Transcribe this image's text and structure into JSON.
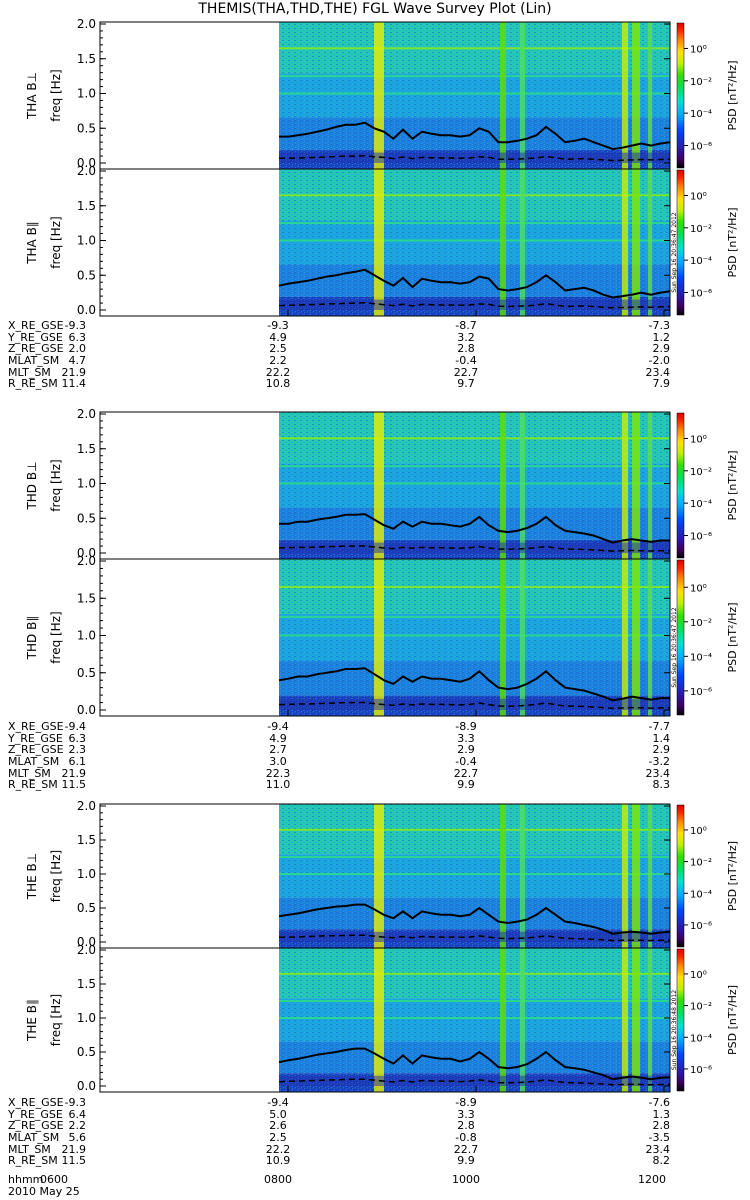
{
  "title": "THEMIS(THA,THD,THE) FGL Wave Survey Plot (Lin)",
  "colorbar_label": "PSD [nT²/Hz]",
  "colorbar_ticks": [
    "10⁰",
    "10⁻²",
    "10⁻⁴",
    "10⁻⁶"
  ],
  "stamps": [
    "Sun Sep 16 20:36:47 2012",
    "Sun Sep 16 20:36:47 2012",
    "Sun Sep 16 20:36:48 2012"
  ],
  "time_axis": {
    "labels": [
      "hhmm",
      "2010 May 25"
    ],
    "ticks": [
      "0600",
      "0800",
      "1000",
      "1200"
    ]
  },
  "ephemeris_labels": [
    "X_RE_GSE",
    "Y_RE_GSE",
    "Z_RE_GSE",
    "MLAT_SM",
    "MLT_SM",
    "R_RE_SM"
  ],
  "ephemeris": [
    {
      "rows": [
        [
          "-9.3",
          "-9.3",
          "-8.7",
          "-7.3"
        ],
        [
          "6.3",
          "4.9",
          "3.2",
          "1.2"
        ],
        [
          "2.0",
          "2.5",
          "2.8",
          "2.9"
        ],
        [
          "4.7",
          "2.2",
          "-0.4",
          "-2.0"
        ],
        [
          "21.9",
          "22.2",
          "22.7",
          "23.4"
        ],
        [
          "11.4",
          "10.8",
          "9.7",
          "7.9"
        ]
      ]
    },
    {
      "rows": [
        [
          "-9.4",
          "-9.4",
          "-8.9",
          "-7.7"
        ],
        [
          "6.3",
          "4.9",
          "3.3",
          "1.4"
        ],
        [
          "2.3",
          "2.7",
          "2.9",
          "2.9"
        ],
        [
          "6.1",
          "3.0",
          "-0.4",
          "-3.2"
        ],
        [
          "21.9",
          "22.3",
          "22.7",
          "23.4"
        ],
        [
          "11.5",
          "11.0",
          "9.9",
          "8.3"
        ]
      ]
    },
    {
      "rows": [
        [
          "-9.3",
          "-9.4",
          "-8.9",
          "-7.6"
        ],
        [
          "6.4",
          "5.0",
          "3.3",
          "1.3"
        ],
        [
          "2.2",
          "2.6",
          "2.8",
          "2.8"
        ],
        [
          "5.6",
          "2.5",
          "-0.8",
          "-3.5"
        ],
        [
          "21.9",
          "22.2",
          "22.7",
          "23.4"
        ],
        [
          "11.5",
          "10.9",
          "9.9",
          "8.2"
        ]
      ]
    }
  ],
  "chart_data": [
    {
      "type": "heatmap",
      "ylabel": "THA B⊥",
      "yunit": "freq [Hz]",
      "ylim": [
        0,
        2.0
      ],
      "yticks": [
        "0.0",
        "0.5",
        "1.0",
        "1.5",
        "2.0"
      ],
      "data_start_hhmm": "0800",
      "x_hours": [
        6,
        12
      ],
      "line_solid_hz": [
        0.38,
        0.38,
        0.4,
        0.42,
        0.45,
        0.48,
        0.52,
        0.55,
        0.55,
        0.58,
        0.5,
        0.45,
        0.35,
        0.48,
        0.35,
        0.45,
        0.42,
        0.4,
        0.4,
        0.38,
        0.4,
        0.5,
        0.45,
        0.3,
        0.3,
        0.32,
        0.35,
        0.4,
        0.52,
        0.42,
        0.3,
        0.32,
        0.35,
        0.3,
        0.25,
        0.2,
        0.22,
        0.25,
        0.28,
        0.25,
        0.28,
        0.3
      ]
    },
    {
      "type": "heatmap",
      "ylabel": "THA B∥",
      "yunit": "freq [Hz]",
      "ylim": [
        0,
        2.0
      ],
      "yticks": [
        "0.0",
        "0.5",
        "1.0",
        "1.5",
        "2.0"
      ],
      "data_start_hhmm": "0800",
      "x_hours": [
        6,
        12
      ],
      "line_solid_hz": [
        0.35,
        0.38,
        0.4,
        0.42,
        0.45,
        0.48,
        0.5,
        0.53,
        0.55,
        0.58,
        0.5,
        0.42,
        0.35,
        0.46,
        0.33,
        0.45,
        0.42,
        0.4,
        0.4,
        0.38,
        0.4,
        0.48,
        0.45,
        0.3,
        0.28,
        0.3,
        0.33,
        0.4,
        0.5,
        0.4,
        0.28,
        0.3,
        0.32,
        0.28,
        0.22,
        0.18,
        0.2,
        0.22,
        0.25,
        0.22,
        0.25,
        0.27
      ]
    },
    {
      "type": "heatmap",
      "ylabel": "THD B⊥",
      "yunit": "freq [Hz]",
      "ylim": [
        0,
        2.0
      ],
      "yticks": [
        "0.0",
        "0.5",
        "1.0",
        "1.5",
        "2.0"
      ],
      "data_start_hhmm": "0800",
      "x_hours": [
        6,
        12
      ],
      "line_solid_hz": [
        0.42,
        0.42,
        0.45,
        0.45,
        0.48,
        0.5,
        0.52,
        0.55,
        0.55,
        0.56,
        0.48,
        0.4,
        0.35,
        0.45,
        0.38,
        0.45,
        0.42,
        0.42,
        0.4,
        0.38,
        0.42,
        0.52,
        0.4,
        0.32,
        0.3,
        0.32,
        0.36,
        0.42,
        0.52,
        0.4,
        0.32,
        0.3,
        0.28,
        0.25,
        0.2,
        0.15,
        0.18,
        0.2,
        0.18,
        0.16,
        0.18,
        0.18
      ]
    },
    {
      "type": "heatmap",
      "ylabel": "THD B∥",
      "yunit": "freq [Hz]",
      "ylim": [
        0,
        2.0
      ],
      "yticks": [
        "0.0",
        "0.5",
        "1.0",
        "1.5",
        "2.0"
      ],
      "data_start_hhmm": "0800",
      "x_hours": [
        6,
        12
      ],
      "line_solid_hz": [
        0.4,
        0.42,
        0.45,
        0.45,
        0.48,
        0.5,
        0.52,
        0.55,
        0.55,
        0.56,
        0.48,
        0.4,
        0.35,
        0.45,
        0.38,
        0.45,
        0.42,
        0.42,
        0.4,
        0.38,
        0.42,
        0.52,
        0.4,
        0.3,
        0.28,
        0.3,
        0.35,
        0.42,
        0.52,
        0.4,
        0.3,
        0.28,
        0.26,
        0.22,
        0.18,
        0.13,
        0.15,
        0.18,
        0.16,
        0.14,
        0.16,
        0.16
      ]
    },
    {
      "type": "heatmap",
      "ylabel": "THE B⊥",
      "yunit": "freq [Hz]",
      "ylim": [
        0,
        2.0
      ],
      "yticks": [
        "0.0",
        "0.5",
        "1.0",
        "1.5",
        "2.0"
      ],
      "data_start_hhmm": "0800",
      "x_hours": [
        6,
        12
      ],
      "line_solid_hz": [
        0.38,
        0.4,
        0.42,
        0.45,
        0.48,
        0.5,
        0.52,
        0.53,
        0.55,
        0.55,
        0.48,
        0.4,
        0.35,
        0.45,
        0.35,
        0.45,
        0.42,
        0.4,
        0.4,
        0.38,
        0.4,
        0.5,
        0.4,
        0.3,
        0.28,
        0.3,
        0.33,
        0.4,
        0.5,
        0.4,
        0.3,
        0.28,
        0.25,
        0.22,
        0.18,
        0.12,
        0.14,
        0.15,
        0.14,
        0.12,
        0.14,
        0.15
      ]
    },
    {
      "type": "heatmap",
      "ylabel": "THE B∥",
      "yunit": "freq [Hz]",
      "ylim": [
        0,
        2.0
      ],
      "yticks": [
        "0.0",
        "0.5",
        "1.0",
        "1.5",
        "2.0"
      ],
      "data_start_hhmm": "0800",
      "x_hours": [
        6,
        12
      ],
      "line_solid_hz": [
        0.35,
        0.38,
        0.4,
        0.43,
        0.46,
        0.48,
        0.5,
        0.53,
        0.55,
        0.55,
        0.48,
        0.4,
        0.33,
        0.45,
        0.33,
        0.45,
        0.42,
        0.4,
        0.4,
        0.36,
        0.4,
        0.5,
        0.4,
        0.28,
        0.26,
        0.28,
        0.32,
        0.4,
        0.5,
        0.38,
        0.28,
        0.26,
        0.24,
        0.2,
        0.16,
        0.1,
        0.12,
        0.14,
        0.12,
        0.1,
        0.12,
        0.13
      ]
    }
  ]
}
